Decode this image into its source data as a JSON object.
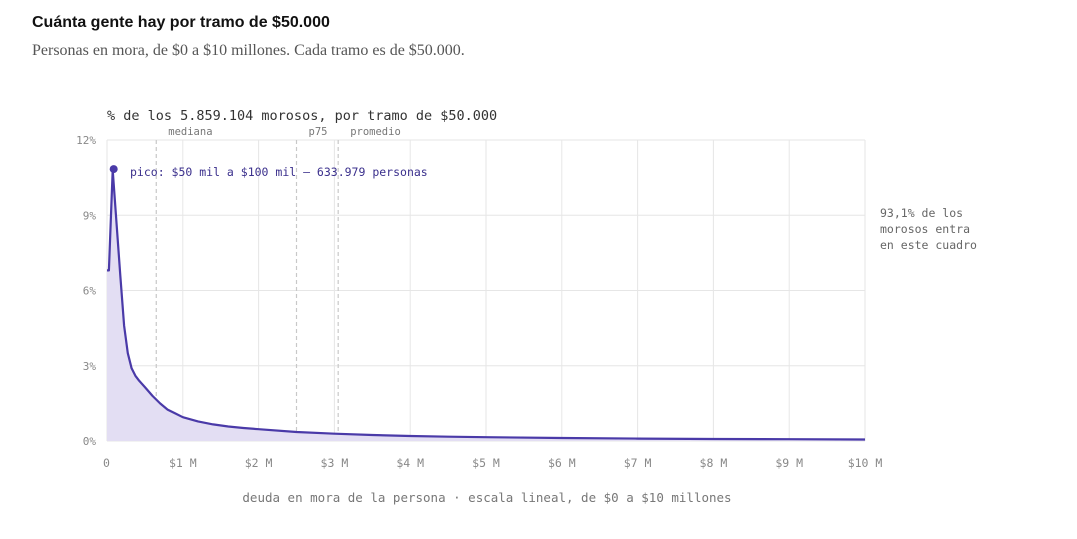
{
  "header": {
    "title": "Cuánta gente hay por tramo de $50.000",
    "subtitle": "Personas en mora, de $0 a $10 millones. Cada tramo es de $50.000."
  },
  "colors": {
    "line": "#4a3aa8",
    "area": "#e3def3",
    "grid": "#e6e6e6",
    "refline": "#c8c8c8",
    "text": "#555555",
    "muted": "#888888"
  },
  "chart_data": {
    "type": "area",
    "title": "% de los 5.859.104 morosos, por tramo de $50.000",
    "xlabel": "deuda en mora de la persona · escala lineal, de $0 a $10 millones",
    "ylabel": "",
    "xlim": [
      0,
      10
    ],
    "ylim": [
      0,
      12
    ],
    "x_unit": "millones de pesos",
    "y_unit": "%",
    "x_ticks": [
      0,
      1,
      2,
      3,
      4,
      5,
      6,
      7,
      8,
      9,
      10
    ],
    "x_tick_labels": [
      "0",
      "$1 M",
      "$2 M",
      "$3 M",
      "$4 M",
      "$5 M",
      "$6 M",
      "$7 M",
      "$8 M",
      "$9 M",
      "$10 M"
    ],
    "y_ticks": [
      0,
      3,
      6,
      9,
      12
    ],
    "y_tick_labels": [
      "0%",
      "3%",
      "6%",
      "9%",
      "12%"
    ],
    "grid": true,
    "series": [
      {
        "points": [
          [
            0.025,
            6.8
          ],
          [
            0.075,
            10.8
          ],
          [
            0.125,
            8.7
          ],
          [
            0.175,
            6.6
          ],
          [
            0.225,
            4.6
          ],
          [
            0.275,
            3.5
          ],
          [
            0.325,
            2.9
          ],
          [
            0.375,
            2.6
          ],
          [
            0.425,
            2.4
          ],
          [
            0.5,
            2.15
          ],
          [
            0.6,
            1.8
          ],
          [
            0.7,
            1.5
          ],
          [
            0.8,
            1.25
          ],
          [
            0.9,
            1.1
          ],
          [
            1.0,
            0.95
          ],
          [
            1.2,
            0.78
          ],
          [
            1.4,
            0.66
          ],
          [
            1.6,
            0.58
          ],
          [
            1.8,
            0.52
          ],
          [
            2.0,
            0.47
          ],
          [
            2.5,
            0.36
          ],
          [
            3.0,
            0.29
          ],
          [
            3.5,
            0.24
          ],
          [
            4.0,
            0.2
          ],
          [
            4.5,
            0.17
          ],
          [
            5.0,
            0.15
          ],
          [
            6.0,
            0.12
          ],
          [
            7.0,
            0.095
          ],
          [
            8.0,
            0.08
          ],
          [
            9.0,
            0.07
          ],
          [
            9.975,
            0.06
          ]
        ]
      }
    ],
    "reference_lines": [
      {
        "label": "mediana",
        "x": 0.65
      },
      {
        "label": "p75",
        "x": 2.5
      },
      {
        "label": "promedio",
        "x": 3.05
      }
    ],
    "peak": {
      "x": 0.075,
      "y": 10.8,
      "label": "pico: $50 mil a $100 mil — 633.979 personas"
    },
    "side_note": [
      "93,1% de los",
      "morosos entra",
      "en este cuadro"
    ]
  }
}
